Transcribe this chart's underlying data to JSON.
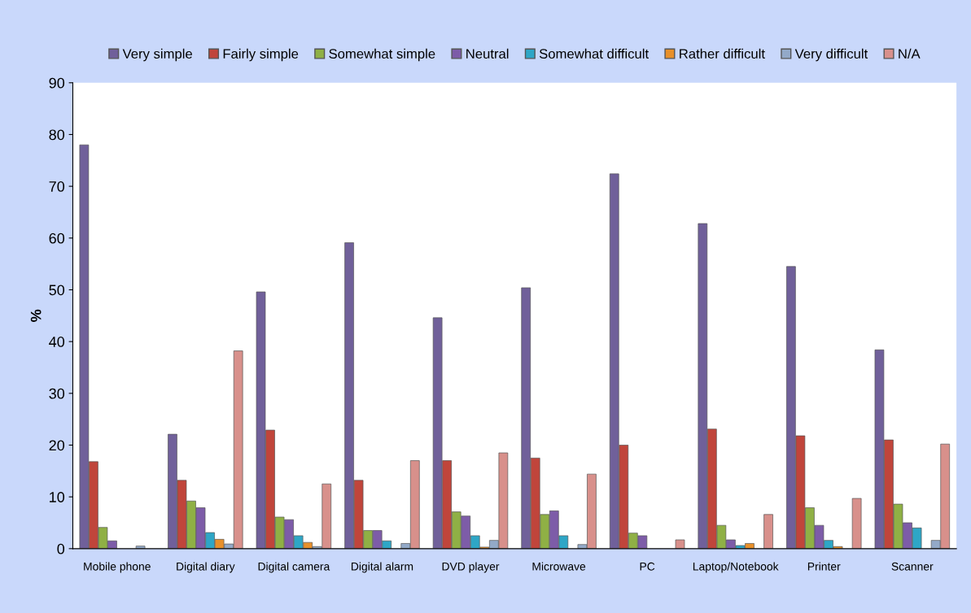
{
  "chart_data": {
    "type": "bar",
    "ylabel": "%",
    "categories": [
      "Mobile phone",
      "Digital diary",
      "Digital camera",
      "Digital alarm",
      "DVD player",
      "Microwave",
      "PC",
      "Laptop/Notebook",
      "Printer",
      "Scanner"
    ],
    "series": [
      {
        "name": "Very simple",
        "color": "#70609a",
        "values": [
          78,
          22.1,
          49.6,
          59.1,
          44.6,
          50.4,
          72.4,
          62.8,
          54.5,
          38.4
        ]
      },
      {
        "name": "Fairly simple",
        "color": "#c0453b",
        "values": [
          16.8,
          13.2,
          22.9,
          13.2,
          17.0,
          17.5,
          20.0,
          23.1,
          21.8,
          21.0
        ]
      },
      {
        "name": "Somewhat simple",
        "color": "#8fb045",
        "values": [
          4.1,
          9.2,
          6.1,
          3.5,
          7.1,
          6.6,
          3.0,
          4.5,
          7.9,
          8.6
        ]
      },
      {
        "name": "Neutral",
        "color": "#7d5ca8",
        "values": [
          1.5,
          7.9,
          5.6,
          3.5,
          6.3,
          7.3,
          2.5,
          1.7,
          4.5,
          5.0
        ]
      },
      {
        "name": "Somewhat difficult",
        "color": "#2ea6c6",
        "values": [
          null,
          3.1,
          2.5,
          1.5,
          2.5,
          2.5,
          null,
          0.6,
          1.6,
          4.0
        ]
      },
      {
        "name": "Rather difficult",
        "color": "#e8902a",
        "values": [
          null,
          1.8,
          1.2,
          null,
          0.3,
          null,
          null,
          1.0,
          0.4,
          null
        ]
      },
      {
        "name": "Very difficult",
        "color": "#93a9c8",
        "values": [
          0.5,
          0.9,
          0.4,
          1.0,
          1.6,
          0.8,
          null,
          null,
          null,
          1.6
        ]
      },
      {
        "name": "N/A",
        "color": "#d8908b",
        "values": [
          null,
          38.2,
          12.5,
          17.0,
          18.5,
          14.4,
          1.7,
          6.6,
          9.7,
          20.2
        ]
      }
    ],
    "ylim": [
      0,
      90
    ],
    "yticks": [
      0,
      10,
      20,
      30,
      40,
      50,
      60,
      70,
      80,
      90
    ],
    "grid": false,
    "legend": "top"
  }
}
